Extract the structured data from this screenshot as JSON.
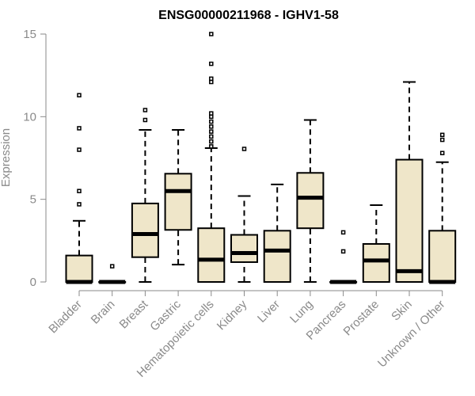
{
  "chart_data": {
    "type": "boxplot",
    "title": "ENSG00000211968 - IGHV1-58",
    "xlabel": "",
    "ylabel": "Expression",
    "ylim": [
      0,
      15
    ],
    "yticks": [
      0,
      5,
      10,
      15
    ],
    "grid": false,
    "colors": {
      "box_fill": "#efe6c9",
      "box_stroke": "#000000",
      "axis": "#8a8a8a"
    },
    "categories": [
      "Bladder",
      "Brain",
      "Breast",
      "Gastric",
      "Hematopoietic cells",
      "Kidney",
      "Liver",
      "Lung",
      "Pancreas",
      "Prostate",
      "Skin",
      "Unknown / Other"
    ],
    "boxes": [
      {
        "min": 0,
        "q1": 0,
        "median": 0,
        "q3": 1.6,
        "max": 3.7,
        "outliers": [
          4.7,
          5.5,
          8.0,
          9.3,
          11.3
        ]
      },
      {
        "min": 0,
        "q1": 0,
        "median": 0,
        "q3": 0,
        "max": 0,
        "outliers": [
          0.95
        ]
      },
      {
        "min": 0,
        "q1": 1.5,
        "median": 2.9,
        "q3": 4.75,
        "max": 9.2,
        "outliers": [
          9.8,
          10.4
        ]
      },
      {
        "min": 1.05,
        "q1": 3.15,
        "median": 5.5,
        "q3": 6.55,
        "max": 9.2,
        "outliers": []
      },
      {
        "min": 0,
        "q1": 0,
        "median": 1.35,
        "q3": 3.25,
        "max": 8.1,
        "outliers": [
          8.2,
          8.5,
          8.8,
          9.1,
          9.4,
          9.7,
          10.0,
          10.2,
          12.1,
          12.3,
          13.2,
          15.0
        ]
      },
      {
        "min": 0,
        "q1": 1.2,
        "median": 1.75,
        "q3": 2.85,
        "max": 5.2,
        "outliers": [
          8.05
        ]
      },
      {
        "min": 0,
        "q1": 0,
        "median": 1.9,
        "q3": 3.1,
        "max": 5.9,
        "outliers": []
      },
      {
        "min": 0,
        "q1": 3.25,
        "median": 5.1,
        "q3": 6.6,
        "max": 9.8,
        "outliers": []
      },
      {
        "min": 0,
        "q1": 0,
        "median": 0,
        "q3": 0,
        "max": 0,
        "outliers": [
          1.85,
          3.0
        ]
      },
      {
        "min": 0,
        "q1": 0,
        "median": 1.3,
        "q3": 2.3,
        "max": 4.65,
        "outliers": []
      },
      {
        "min": 0,
        "q1": 0,
        "median": 0.65,
        "q3": 7.4,
        "max": 12.1,
        "outliers": []
      },
      {
        "min": 0,
        "q1": 0,
        "median": 0,
        "q3": 3.1,
        "max": 7.25,
        "outliers": [
          7.8,
          8.6,
          8.9
        ]
      }
    ]
  }
}
